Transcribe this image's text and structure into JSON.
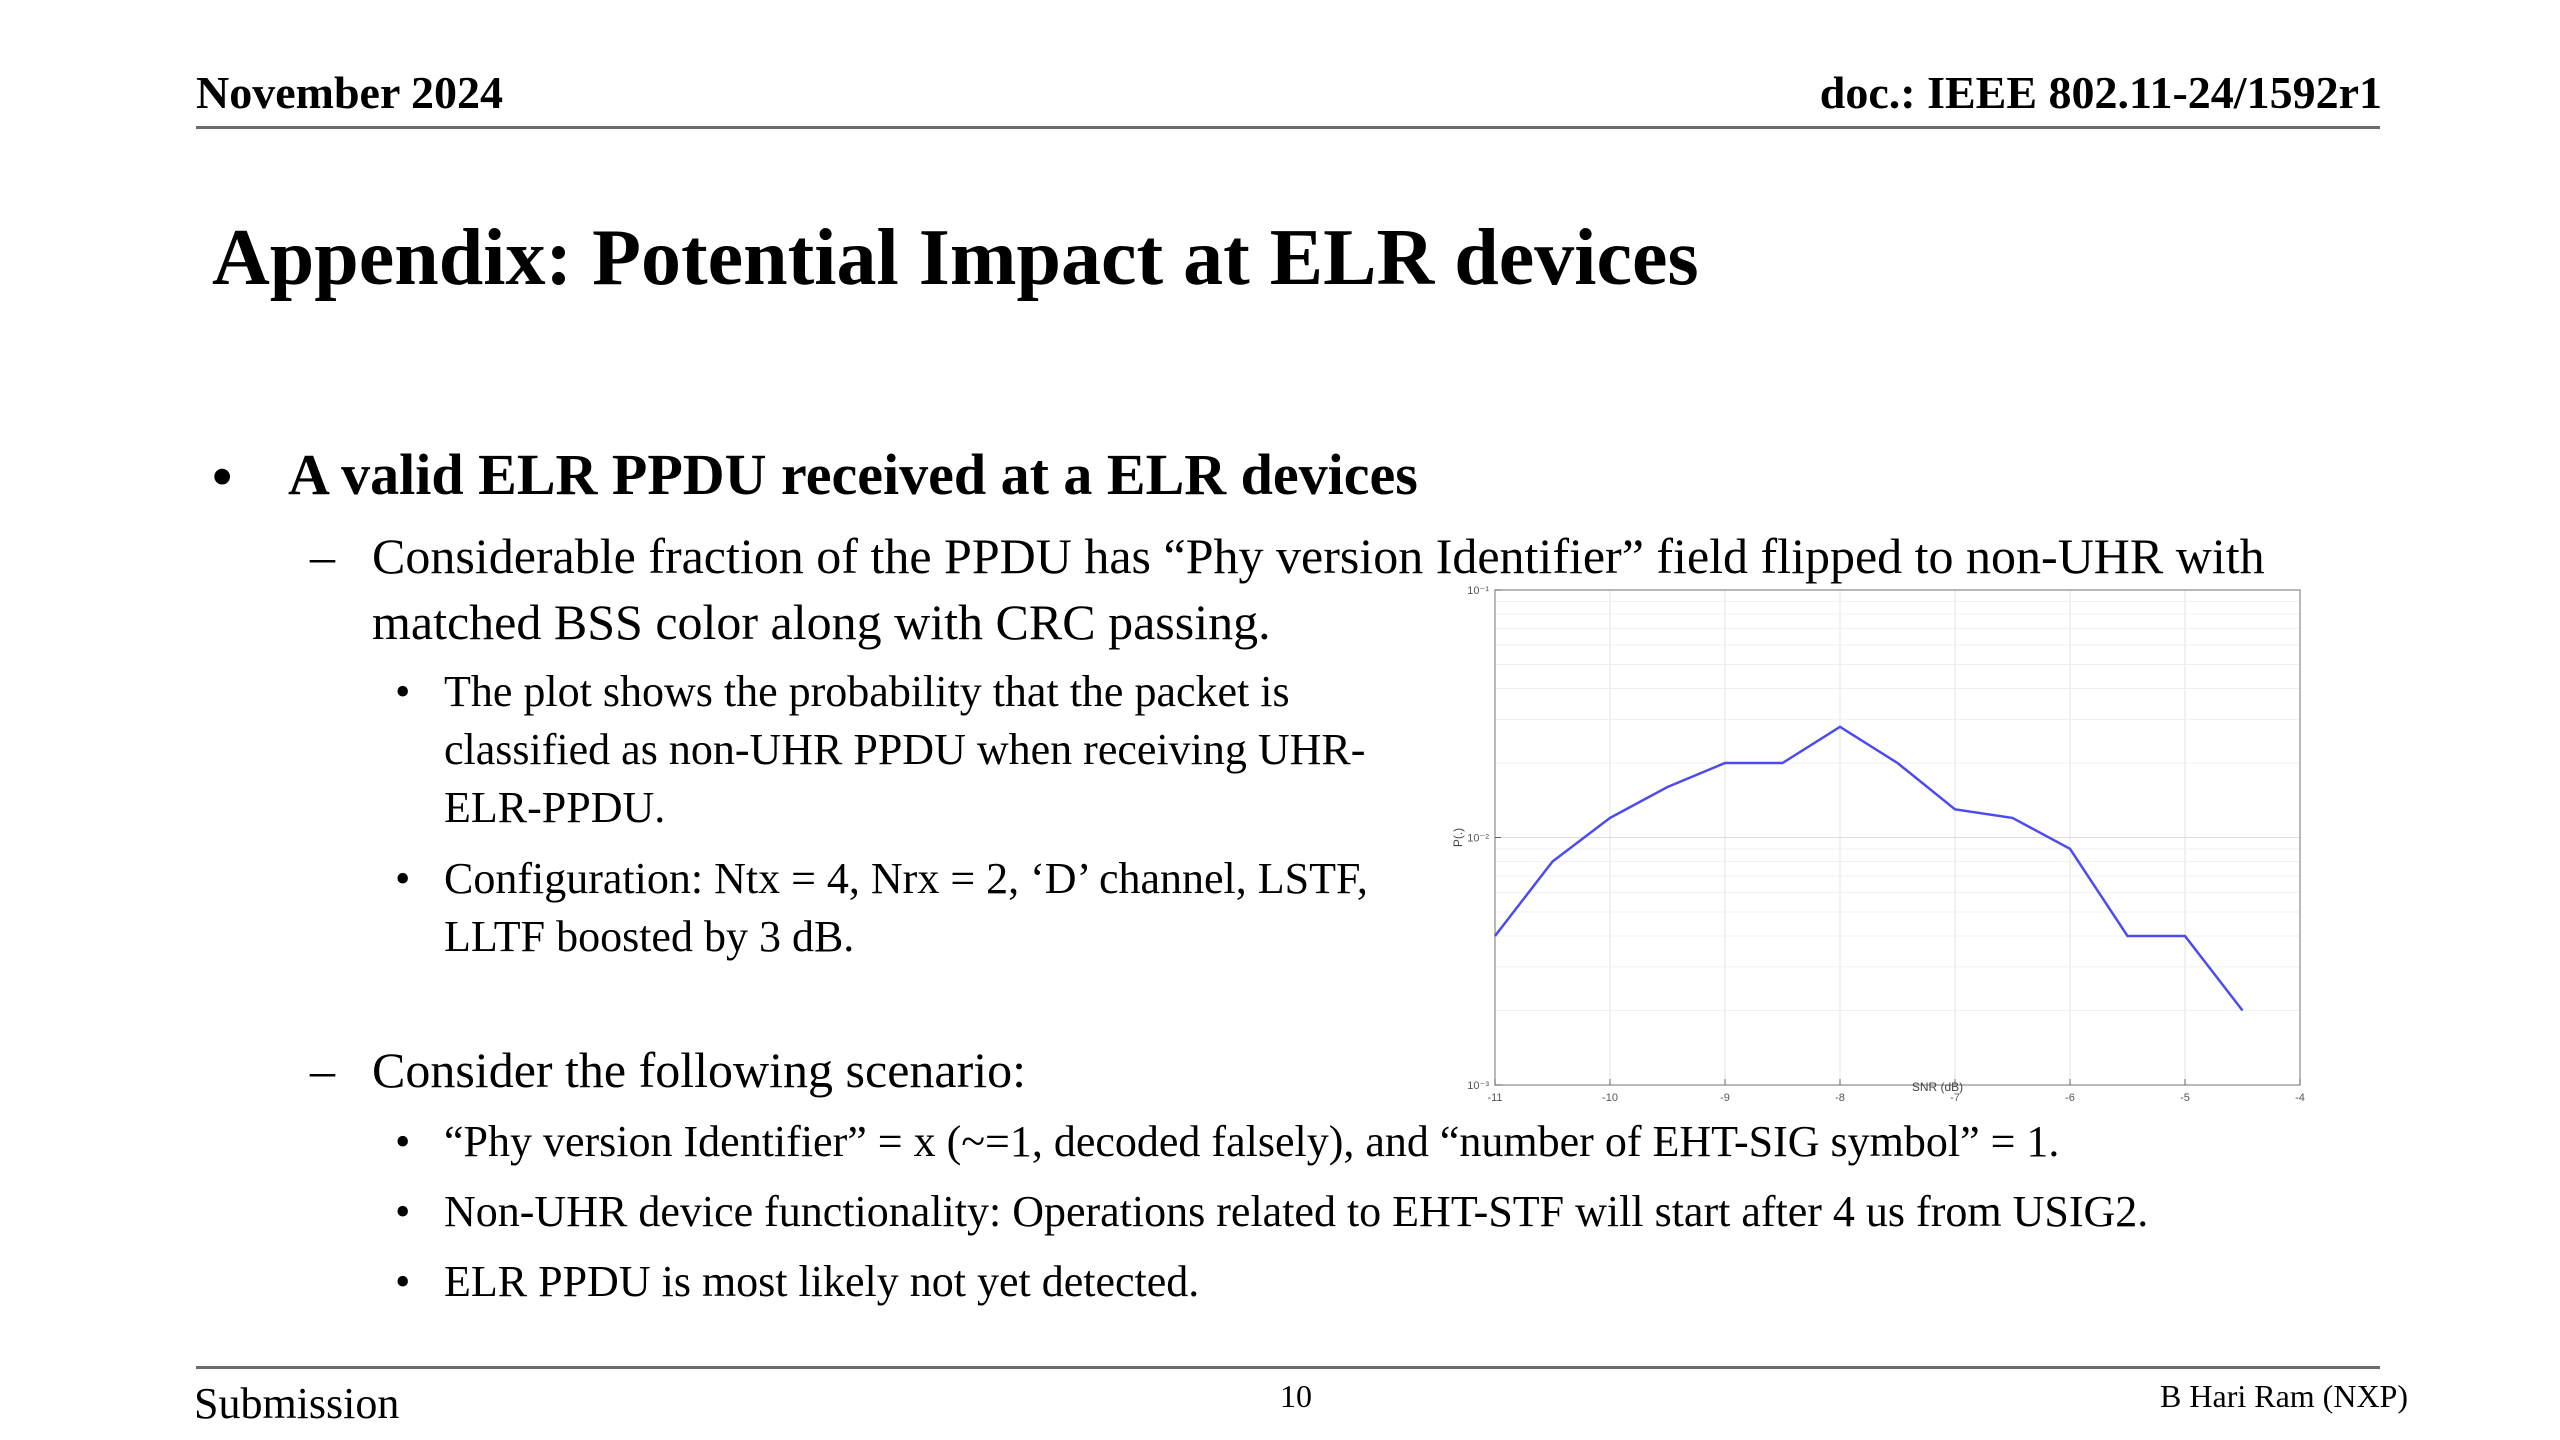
{
  "header": {
    "date": "November 2024",
    "doc_id": "doc.: IEEE 802.11-24/1592r1"
  },
  "title": "Appendix: Potential Impact at ELR devices",
  "bullets": {
    "main": "A valid ELR PPDU received at a ELR devices",
    "sub1": "Considerable fraction of the PPDU has “Phy version Identifier” field flipped to non-UHR with matched BSS color along with CRC passing.",
    "sub1_items": [
      "The plot shows the probability that the packet is classified as non-UHR PPDU when receiving UHR-ELR-PPDU.",
      "Configuration: Ntx = 4, Nrx = 2, ‘D’ channel, LSTF, LLTF boosted by 3 dB."
    ],
    "sub2": "Consider the following scenario:",
    "sub2_items": [
      "“Phy version Identifier” = x (~=1, decoded falsely), and “number of EHT-SIG symbol” = 1.",
      "Non-UHR device functionality: Operations related to EHT-STF will start after 4 us from USIG2.",
      "ELR PPDU is most likely not yet detected."
    ]
  },
  "footer": {
    "left": "Submission",
    "page": "10",
    "author": "B Hari Ram (NXP)"
  },
  "chart_data": {
    "type": "line",
    "xlabel": "SNR (dB)",
    "ylabel": "P(.)",
    "xlim": [
      -11,
      -4
    ],
    "ylim": [
      0.001,
      0.1
    ],
    "yscale": "log",
    "grid": true,
    "xticks": [
      "-11",
      "-10",
      "-9",
      "-8",
      "-7",
      "-6",
      "-5",
      "-4"
    ],
    "yticks": [
      "10⁻³",
      "10⁻²",
      "10⁻¹"
    ],
    "x": [
      -11,
      -10.5,
      -10,
      -9.5,
      -9,
      -8.5,
      -8,
      -7.5,
      -7,
      -6.5,
      -6,
      -5.5,
      -5,
      -4.5
    ],
    "y": [
      0.004,
      0.008,
      0.012,
      0.016,
      0.02,
      0.02,
      0.028,
      0.02,
      0.013,
      0.012,
      0.009,
      0.004,
      0.004,
      0.002
    ],
    "color": "#4b4bf0"
  }
}
